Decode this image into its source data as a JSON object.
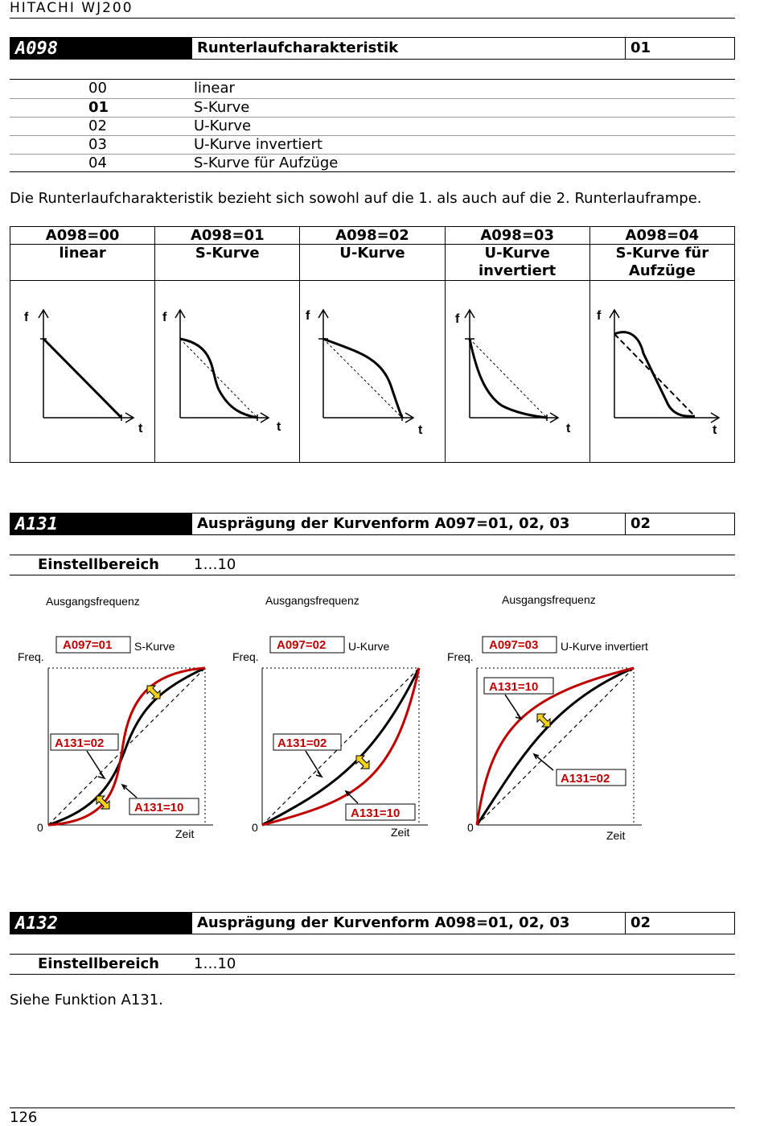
{
  "header": {
    "title": "HITACHI WJ200"
  },
  "a098": {
    "code": "A098",
    "title": "Runterlaufcharakteristik",
    "value": "01",
    "options": [
      {
        "num": "00",
        "label": "linear"
      },
      {
        "num": "01",
        "label": "S-Kurve"
      },
      {
        "num": "02",
        "label": "U-Kurve"
      },
      {
        "num": "03",
        "label": "U-Kurve invertiert"
      },
      {
        "num": "04",
        "label": "S-Kurve für Aufzüge"
      }
    ],
    "description": "Die Runterlaufcharakteristik bezieht sich sowohl auf die 1. als auch auf die 2. Runterlauframpe."
  },
  "compare_table": {
    "columns": [
      {
        "code": "A098=00",
        "name": "linear"
      },
      {
        "code": "A098=01",
        "name": "S-Kurve"
      },
      {
        "code": "A098=02",
        "name": "U-Kurve"
      },
      {
        "code": "A098=03",
        "name": "U-Kurve invertiert"
      },
      {
        "code": "A098=04",
        "name": "S-Kurve für Aufzüge"
      }
    ],
    "axis_f": "f",
    "axis_t": "t"
  },
  "a131": {
    "code": "A131",
    "title": "Ausprägung der Kurvenform A097=01, 02, 03",
    "value": "02",
    "range_label": "Einstellbereich",
    "range_value": "1…10",
    "graphs": [
      {
        "heading": "Ausgangsfrequenz",
        "tag": "A097=01",
        "curve": "S-Kurve",
        "low": "A131=02",
        "high": "A131=10"
      },
      {
        "heading": "Ausgangsfrequenz",
        "tag": "A097=02",
        "curve": "U-Kurve",
        "low": "A131=02",
        "high": "A131=10"
      },
      {
        "heading": "Ausgangsfrequenz",
        "tag": "A097=03",
        "curve": "U-Kurve invertiert",
        "low": "A131=02",
        "high": "A131=10"
      }
    ],
    "y_label": "Freq.",
    "x_label": "Zeit",
    "zero": "0"
  },
  "a132": {
    "code": "A132",
    "title": "Ausprägung der Kurvenform A098=01, 02, 03",
    "value": "02",
    "range_label": "Einstellbereich",
    "range_value": "1…10",
    "note": "Siehe Funktion A131."
  },
  "footer": {
    "page": "126"
  },
  "colors": {
    "accent_red": "#c00000",
    "arrow_yellow": "#f2d21c"
  }
}
